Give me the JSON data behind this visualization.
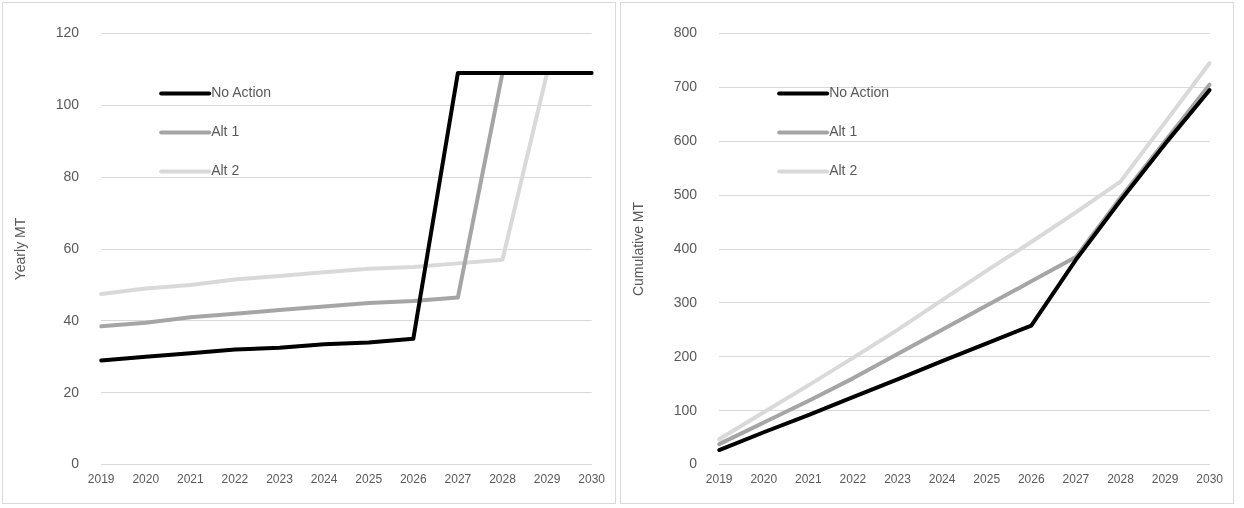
{
  "chart_data": [
    {
      "type": "line",
      "ylabel": "Yearly MT",
      "categories": [
        "2019",
        "2020",
        "2021",
        "2022",
        "2023",
        "2024",
        "2025",
        "2026",
        "2027",
        "2028",
        "2029",
        "2030"
      ],
      "ylim": [
        0,
        120
      ],
      "yticks": [
        0,
        20,
        40,
        60,
        80,
        100,
        120
      ],
      "grid": "y",
      "legend": "top left",
      "marker": "none",
      "line_style": "solid",
      "series": [
        {
          "name": "No Action",
          "color": "#000000",
          "values": [
            29,
            30,
            31,
            32,
            32.5,
            33.5,
            34,
            35,
            109,
            109,
            109,
            109
          ]
        },
        {
          "name": "Alt 1",
          "color": "#a5a5a5",
          "values": [
            38.5,
            39.5,
            41,
            42,
            43,
            44,
            45,
            45.5,
            46.5,
            109,
            109,
            109
          ]
        },
        {
          "name": "Alt 2",
          "color": "#d9d9d9",
          "values": [
            47.5,
            49,
            50,
            51.5,
            52.5,
            53.5,
            54.5,
            55,
            56,
            57,
            109,
            109
          ]
        }
      ]
    },
    {
      "type": "line",
      "ylabel": "Cumulative MT",
      "categories": [
        "2019",
        "2020",
        "2021",
        "2022",
        "2023",
        "2024",
        "2025",
        "2026",
        "2027",
        "2028",
        "2029",
        "2030"
      ],
      "ylim": [
        0,
        800
      ],
      "yticks": [
        0,
        100,
        200,
        300,
        400,
        500,
        600,
        700,
        800
      ],
      "grid": "y",
      "legend": "top left",
      "marker": "none",
      "line_style": "solid",
      "series": [
        {
          "name": "No Action",
          "color": "#000000",
          "values": [
            27,
            60,
            92,
            125,
            158,
            192,
            225,
            258,
            380,
            490,
            595,
            695
          ]
        },
        {
          "name": "Alt 1",
          "color": "#a5a5a5",
          "values": [
            38,
            78,
            118,
            160,
            205,
            250,
            295,
            340,
            385,
            495,
            600,
            705
          ]
        },
        {
          "name": "Alt 2",
          "color": "#d9d9d9",
          "values": [
            47,
            97,
            147,
            198,
            250,
            305,
            360,
            413,
            468,
            525,
            635,
            745
          ]
        }
      ]
    }
  ]
}
